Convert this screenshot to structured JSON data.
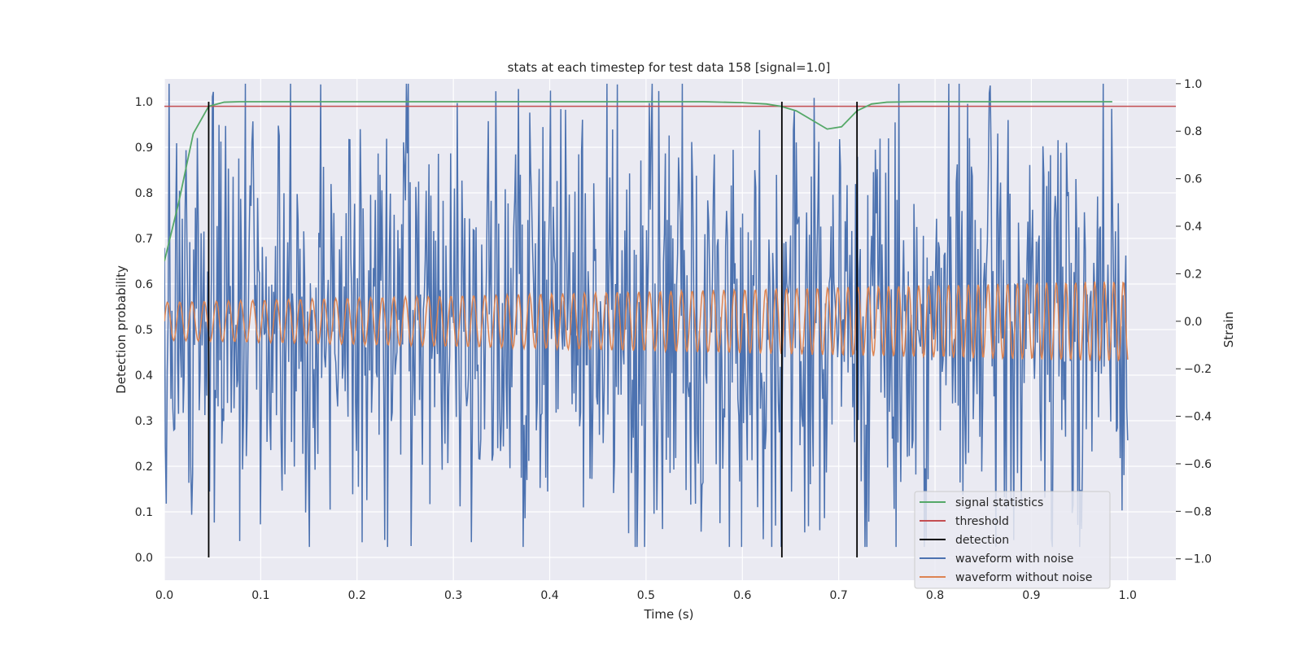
{
  "chart_data": {
    "type": "line",
    "title": "stats at each timestep for test data 158 [signal=1.0]",
    "xlabel": "Time (s)",
    "ylabel": "Detection probability",
    "y2label": "Strain",
    "xlim": [
      0.0,
      1.05
    ],
    "ylim": [
      -0.05,
      1.05
    ],
    "y2lim": [
      -1.09,
      1.02
    ],
    "xticks": [
      "0.0",
      "0.1",
      "0.2",
      "0.3",
      "0.4",
      "0.5",
      "0.6",
      "0.7",
      "0.8",
      "0.9",
      "1.0"
    ],
    "yticks": [
      "0.0",
      "0.1",
      "0.2",
      "0.3",
      "0.4",
      "0.5",
      "0.6",
      "0.7",
      "0.8",
      "0.9",
      "1.0"
    ],
    "y2ticks": [
      "−1.0",
      "−0.8",
      "−0.6",
      "−0.4",
      "−0.2",
      "0.0",
      "0.2",
      "0.4",
      "0.6",
      "0.8",
      "1.0"
    ],
    "grid": true,
    "legend_position": "bottom-right",
    "colors": {
      "signal": "#55a868",
      "threshold": "#c44e52",
      "detection": "#000000",
      "noisy": "#4c72b0",
      "clean": "#dd8452",
      "background": "#eaeaf2"
    },
    "series": [
      {
        "name": "signal statistics",
        "axis": "left",
        "x": [
          0.0,
          0.015,
          0.03,
          0.046,
          0.062,
          0.078,
          0.1,
          0.2,
          0.3,
          0.4,
          0.5,
          0.56,
          0.6,
          0.625,
          0.64,
          0.656,
          0.672,
          0.688,
          0.703,
          0.719,
          0.734,
          0.75,
          0.78,
          0.85,
          0.9,
          0.984
        ],
        "y": [
          0.65,
          0.78,
          0.93,
          0.99,
          0.999,
          1.0,
          1.0,
          1.0,
          1.0,
          1.0,
          1.0,
          1.0,
          0.998,
          0.995,
          0.99,
          0.98,
          0.96,
          0.94,
          0.945,
          0.98,
          0.995,
          0.999,
          1.0,
          1.0,
          1.0,
          1.0
        ]
      },
      {
        "name": "threshold",
        "axis": "left",
        "x": [
          0.0,
          1.05
        ],
        "y": [
          0.99,
          0.99
        ]
      },
      {
        "name": "detection",
        "axis": "left",
        "x": [
          0.046,
          0.641,
          0.719
        ],
        "y_range": [
          0.0,
          1.0
        ]
      },
      {
        "name": "waveform with noise",
        "axis": "right",
        "t_range": [
          0.0,
          1.0
        ],
        "points": 1024,
        "amplitude_range": [
          -0.95,
          1.0
        ]
      },
      {
        "name": "waveform without noise",
        "axis": "right",
        "t_range": [
          0.0,
          1.0
        ],
        "points": 1024,
        "amplitude_start": 0.08,
        "amplitude_end": 0.17,
        "cycles": 78
      }
    ]
  }
}
